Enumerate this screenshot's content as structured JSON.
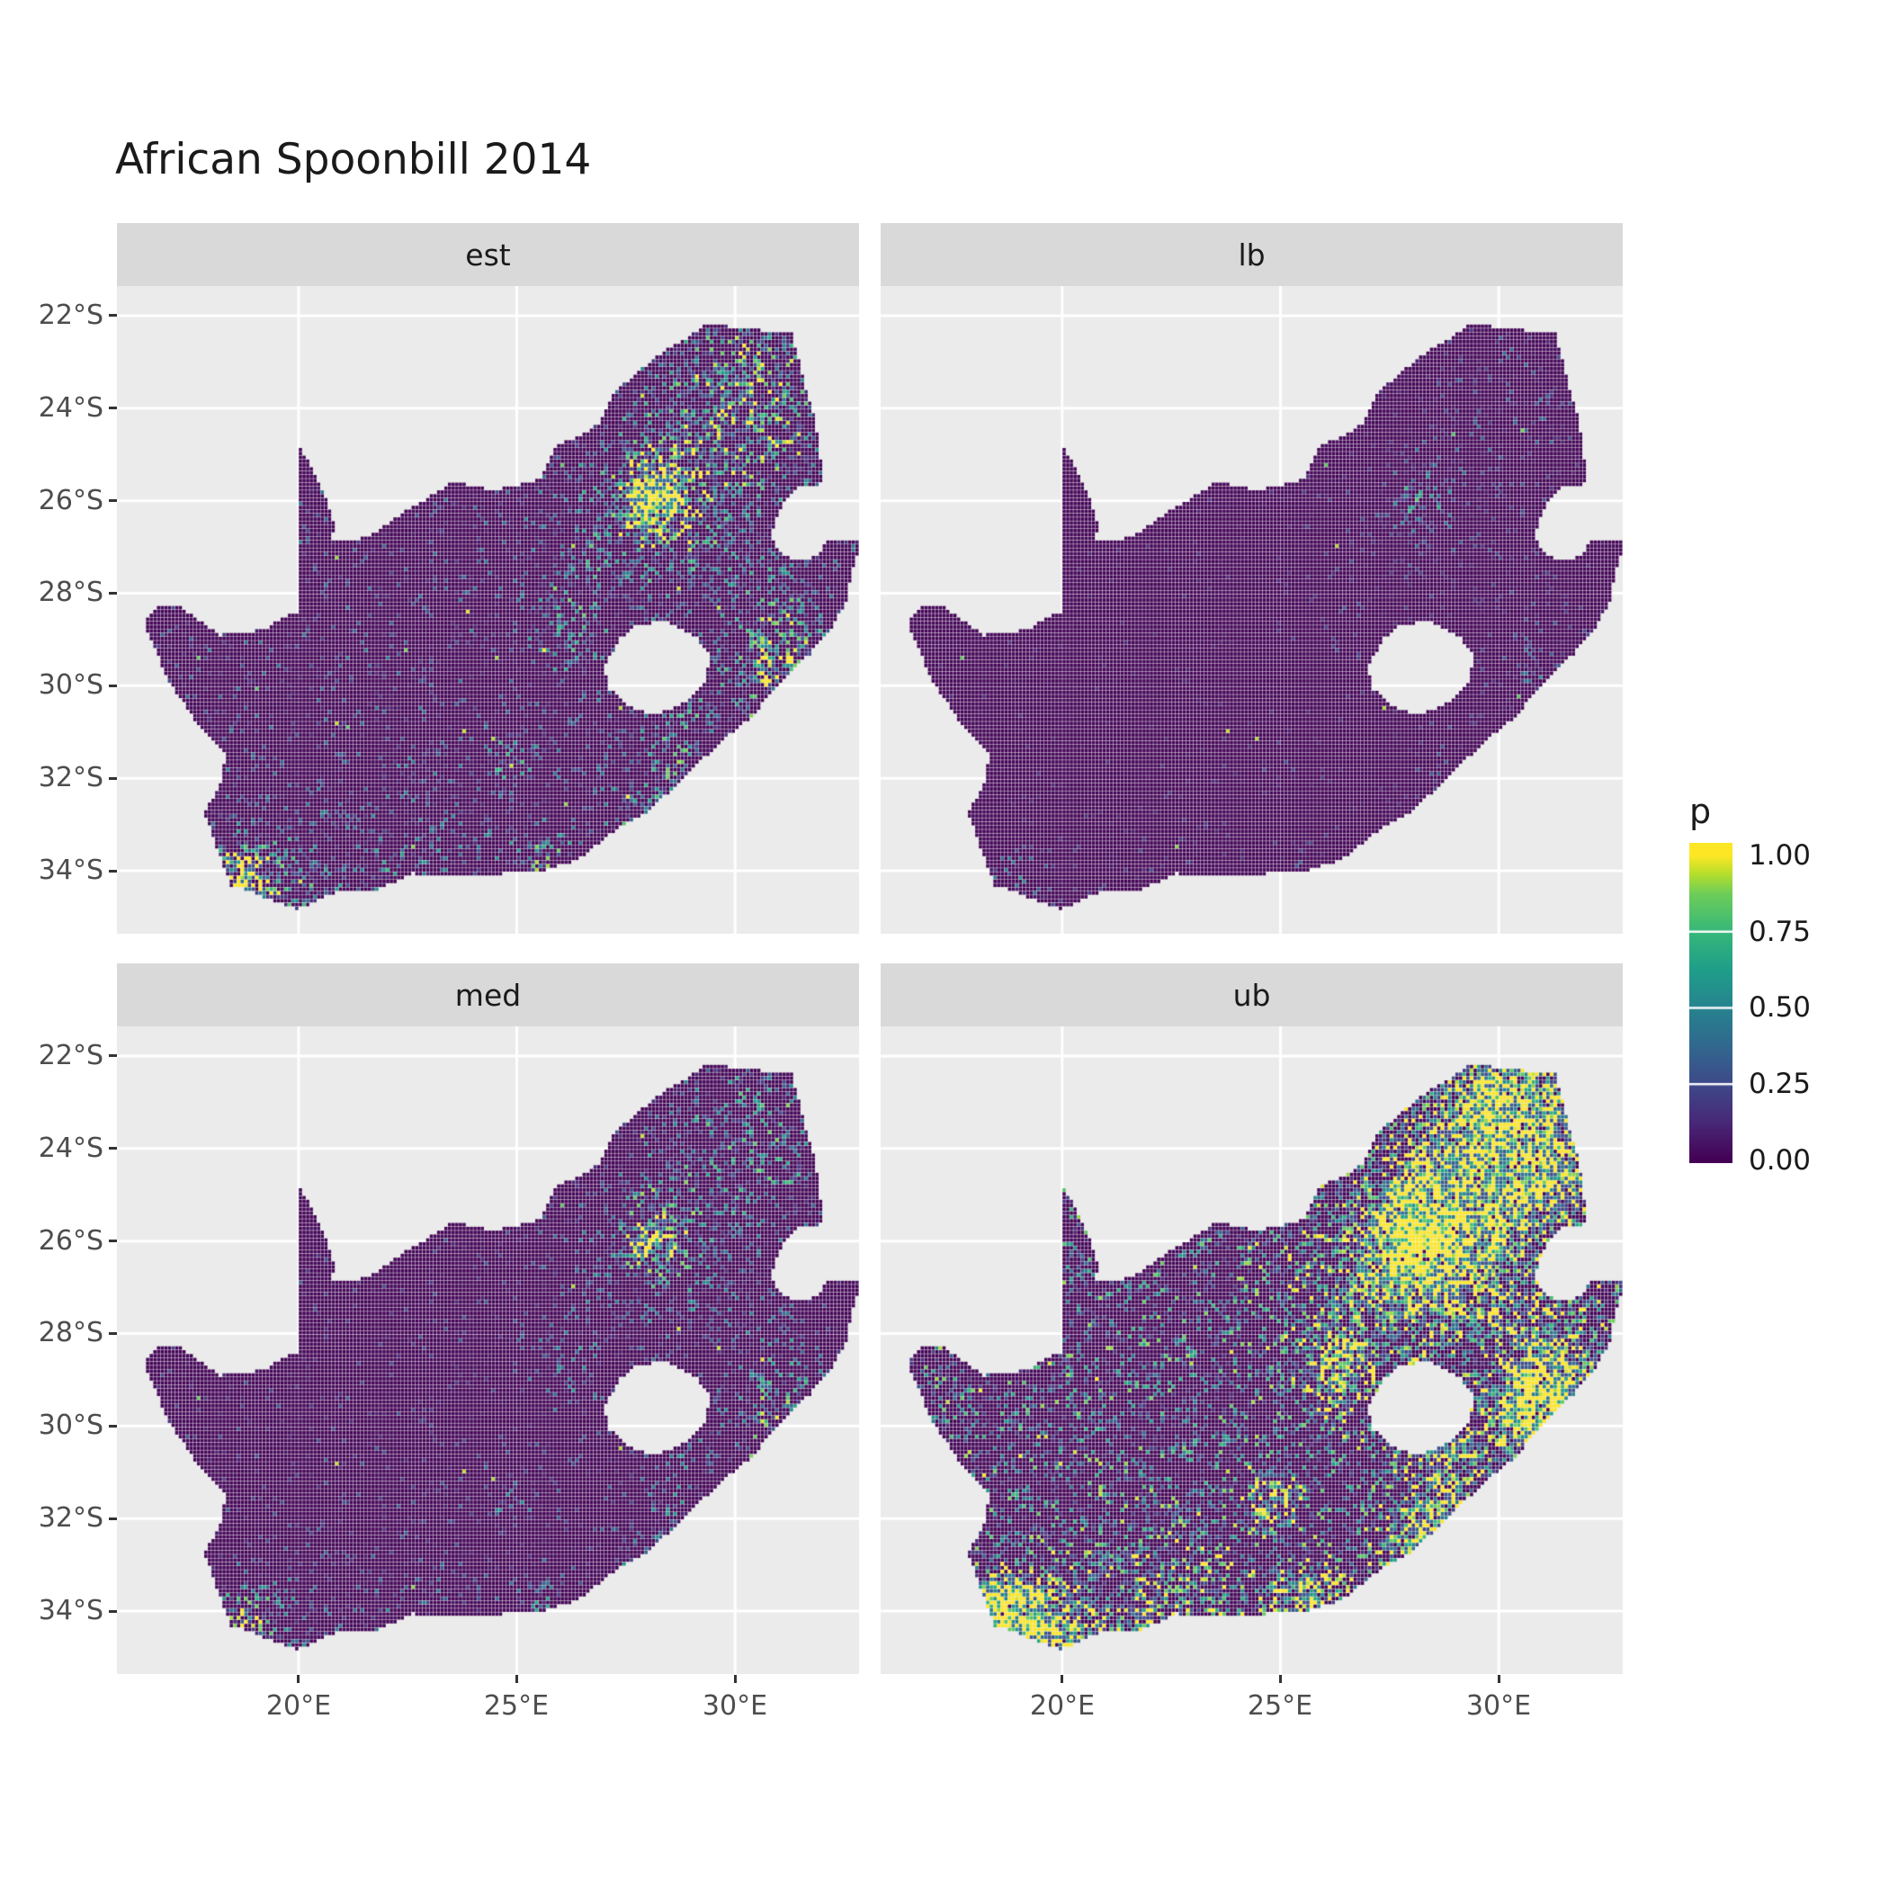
{
  "chart_data": {
    "type": "heatmap",
    "title": "African Spoonbill 2014",
    "subtitle": "",
    "facets": [
      {
        "label": "est",
        "speckle_chance": 0.09,
        "value_gain": 1.3,
        "bright_chance": 0.006
      },
      {
        "label": "lb",
        "speckle_chance": 0.025,
        "value_gain": 0.45,
        "bright_chance": 0.0025
      },
      {
        "label": "med",
        "speckle_chance": 0.055,
        "value_gain": 0.95,
        "bright_chance": 0.004
      },
      {
        "label": "ub",
        "speckle_chance": 0.22,
        "value_gain": 2.6,
        "bright_chance": 0.03
      }
    ],
    "x_axis": {
      "ticks": [
        "20°E",
        "25°E",
        "30°E"
      ],
      "tick_values": [
        20,
        25,
        30
      ],
      "range": [
        15.84,
        32.84
      ]
    },
    "y_axis": {
      "ticks": [
        "22°S",
        "24°S",
        "26°S",
        "28°S",
        "30°S",
        "32°S",
        "34°S"
      ],
      "tick_values": [
        22,
        24,
        26,
        28,
        30,
        32,
        34
      ],
      "range": [
        21.36,
        35.36
      ]
    },
    "legend": {
      "title": "p",
      "labels": [
        "1.00",
        "0.75",
        "0.50",
        "0.25",
        "0.00"
      ],
      "values": [
        1,
        0.75,
        0.5,
        0.25,
        0
      ]
    },
    "grid": "major-white",
    "colors": {
      "panel_background": "#EBEBEB",
      "strip_background": "#D9D9D9",
      "grid_line": "#FFFFFF",
      "axis_text": "#4D4D4D",
      "na_fill": "#440154"
    },
    "colormap": {
      "name": "viridis",
      "stops": [
        [
          0.0,
          68,
          1,
          84
        ],
        [
          0.125,
          72,
          40,
          120
        ],
        [
          0.25,
          62,
          73,
          137
        ],
        [
          0.375,
          49,
          104,
          142
        ],
        [
          0.5,
          38,
          130,
          142
        ],
        [
          0.625,
          31,
          158,
          137
        ],
        [
          0.75,
          53,
          183,
          121
        ],
        [
          0.875,
          109,
          205,
          89
        ],
        [
          0.94,
          180,
          222,
          44
        ],
        [
          1.0,
          253,
          231,
          37
        ]
      ]
    },
    "cell_size_deg": 0.0833,
    "hotspots": [
      [
        28.05,
        26.05,
        0.45,
        1.3
      ],
      [
        28.35,
        25.2,
        0.9,
        0.5
      ],
      [
        27.2,
        26.9,
        1.1,
        0.3
      ],
      [
        29.3,
        26.6,
        1.0,
        0.3
      ],
      [
        30.9,
        29.75,
        0.55,
        0.65
      ],
      [
        31.2,
        28.7,
        0.9,
        0.4
      ],
      [
        29.9,
        23.8,
        1.1,
        0.35
      ],
      [
        31.1,
        24.7,
        0.9,
        0.35
      ],
      [
        30.3,
        22.8,
        1.0,
        0.3
      ],
      [
        26.2,
        28.9,
        0.7,
        0.3
      ],
      [
        28.9,
        30.5,
        0.8,
        0.3
      ],
      [
        18.65,
        34.0,
        0.45,
        1.0
      ],
      [
        19.6,
        34.45,
        0.8,
        0.45
      ],
      [
        22.5,
        34.0,
        1.1,
        0.25
      ],
      [
        25.6,
        33.85,
        0.55,
        0.45
      ],
      [
        27.9,
        32.95,
        0.6,
        0.35
      ],
      [
        24.9,
        31.6,
        0.45,
        0.3
      ],
      [
        28.6,
        32.0,
        0.6,
        0.3
      ]
    ],
    "south_africa_outline": [
      [
        16.45,
        28.6
      ],
      [
        16.8,
        28.3
      ],
      [
        17.2,
        28.23
      ],
      [
        17.6,
        28.52
      ],
      [
        18.2,
        28.9
      ],
      [
        18.8,
        28.86
      ],
      [
        19.3,
        28.74
      ],
      [
        19.65,
        28.5
      ],
      [
        19.99,
        28.43
      ],
      [
        19.99,
        24.77
      ],
      [
        20.4,
        25.45
      ],
      [
        20.65,
        26.0
      ],
      [
        20.85,
        26.55
      ],
      [
        20.7,
        26.85
      ],
      [
        21.3,
        26.87
      ],
      [
        21.8,
        26.67
      ],
      [
        22.25,
        26.35
      ],
      [
        22.9,
        25.98
      ],
      [
        23.5,
        25.62
      ],
      [
        24.0,
        25.67
      ],
      [
        24.45,
        25.77
      ],
      [
        25.0,
        25.68
      ],
      [
        25.55,
        25.52
      ],
      [
        25.9,
        24.8
      ],
      [
        26.4,
        24.64
      ],
      [
        26.9,
        24.32
      ],
      [
        27.2,
        23.68
      ],
      [
        27.7,
        23.28
      ],
      [
        28.2,
        22.88
      ],
      [
        28.9,
        22.48
      ],
      [
        29.4,
        22.16
      ],
      [
        30.0,
        22.26
      ],
      [
        30.6,
        22.32
      ],
      [
        31.3,
        22.4
      ],
      [
        31.6,
        23.5
      ],
      [
        31.85,
        24.3
      ],
      [
        31.95,
        25.1
      ],
      [
        32.05,
        25.62
      ],
      [
        31.35,
        25.74
      ],
      [
        30.97,
        26.28
      ],
      [
        30.82,
        26.82
      ],
      [
        31.12,
        27.2
      ],
      [
        31.65,
        27.32
      ],
      [
        31.97,
        27.08
      ],
      [
        32.13,
        26.86
      ],
      [
        32.89,
        26.86
      ],
      [
        32.65,
        27.6
      ],
      [
        32.55,
        28.2
      ],
      [
        32.2,
        28.75
      ],
      [
        31.75,
        29.28
      ],
      [
        31.05,
        29.9
      ],
      [
        30.4,
        30.65
      ],
      [
        29.55,
        31.32
      ],
      [
        28.8,
        32.02
      ],
      [
        28.0,
        32.72
      ],
      [
        27.4,
        33.02
      ],
      [
        26.4,
        33.76
      ],
      [
        25.65,
        33.98
      ],
      [
        25.0,
        34.02
      ],
      [
        24.2,
        34.12
      ],
      [
        23.4,
        34.12
      ],
      [
        22.6,
        34.06
      ],
      [
        21.8,
        34.42
      ],
      [
        20.95,
        34.42
      ],
      [
        20.0,
        34.83
      ],
      [
        19.3,
        34.62
      ],
      [
        18.85,
        34.42
      ],
      [
        18.45,
        34.32
      ],
      [
        18.3,
        33.92
      ],
      [
        18.0,
        33.15
      ],
      [
        17.85,
        32.75
      ],
      [
        18.25,
        32.05
      ],
      [
        18.32,
        31.5
      ],
      [
        17.6,
        30.7
      ],
      [
        17.05,
        29.92
      ],
      [
        16.8,
        29.4
      ]
    ],
    "lesotho_hole": [
      [
        27.0,
        29.6
      ],
      [
        27.35,
        29.0
      ],
      [
        27.75,
        28.7
      ],
      [
        28.4,
        28.6
      ],
      [
        29.1,
        28.95
      ],
      [
        29.45,
        29.35
      ],
      [
        29.3,
        29.95
      ],
      [
        28.85,
        30.35
      ],
      [
        28.15,
        30.65
      ],
      [
        27.55,
        30.42
      ],
      [
        27.1,
        30.05
      ]
    ]
  }
}
